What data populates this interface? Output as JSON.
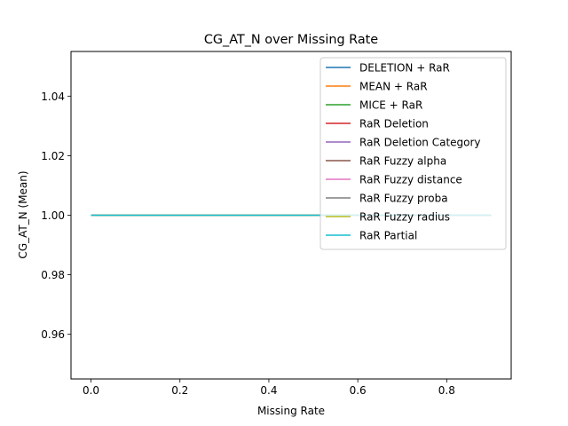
{
  "chart_data": {
    "type": "line",
    "title": "CG_AT_N over Missing Rate",
    "xlabel": "Missing Rate",
    "ylabel": "CG_AT_N (Mean)",
    "xlim": [
      -0.045,
      0.945
    ],
    "ylim": [
      0.945,
      1.055
    ],
    "xticks": [
      0.0,
      0.2,
      0.4,
      0.6,
      0.8
    ],
    "xtick_labels": [
      "0.0",
      "0.2",
      "0.4",
      "0.6",
      "0.8"
    ],
    "yticks": [
      0.96,
      0.98,
      1.0,
      1.02,
      1.04
    ],
    "ytick_labels": [
      "0.96",
      "0.98",
      "1.00",
      "1.02",
      "1.04"
    ],
    "grid": false,
    "legend_position": "top-right",
    "x": [
      0.0,
      0.1,
      0.2,
      0.3,
      0.4,
      0.5,
      0.6,
      0.7,
      0.8,
      0.9
    ],
    "series": [
      {
        "name": "DELETION + RaR",
        "color": "#1f77b4",
        "values": [
          1.0,
          1.0,
          1.0,
          1.0,
          1.0,
          1.0,
          1.0,
          1.0,
          1.0,
          1.0
        ]
      },
      {
        "name": "MEAN + RaR",
        "color": "#ff7f0e",
        "values": [
          1.0,
          1.0,
          1.0,
          1.0,
          1.0,
          1.0,
          1.0,
          1.0,
          1.0,
          1.0
        ]
      },
      {
        "name": "MICE + RaR",
        "color": "#2ca02c",
        "values": [
          1.0,
          1.0,
          1.0,
          1.0,
          1.0,
          1.0,
          1.0,
          1.0,
          1.0,
          1.0
        ]
      },
      {
        "name": "RaR Deletion",
        "color": "#d62728",
        "values": [
          1.0,
          1.0,
          1.0,
          1.0,
          1.0,
          1.0,
          1.0,
          1.0,
          1.0,
          1.0
        ]
      },
      {
        "name": "RaR Deletion Category",
        "color": "#9467bd",
        "values": [
          1.0,
          1.0,
          1.0,
          1.0,
          1.0,
          1.0,
          1.0,
          1.0,
          1.0,
          1.0
        ]
      },
      {
        "name": "RaR Fuzzy alpha",
        "color": "#8c564b",
        "values": [
          1.0,
          1.0,
          1.0,
          1.0,
          1.0,
          1.0,
          1.0,
          1.0,
          1.0,
          1.0
        ]
      },
      {
        "name": "RaR Fuzzy distance",
        "color": "#e377c2",
        "values": [
          1.0,
          1.0,
          1.0,
          1.0,
          1.0,
          1.0,
          1.0,
          1.0,
          1.0,
          1.0
        ]
      },
      {
        "name": "RaR Fuzzy proba",
        "color": "#7f7f7f",
        "values": [
          1.0,
          1.0,
          1.0,
          1.0,
          1.0,
          1.0,
          1.0,
          1.0,
          1.0,
          1.0
        ]
      },
      {
        "name": "RaR Fuzzy radius",
        "color": "#bcbd22",
        "values": [
          1.0,
          1.0,
          1.0,
          1.0,
          1.0,
          1.0,
          1.0,
          1.0,
          1.0,
          1.0
        ]
      },
      {
        "name": "RaR Partial",
        "color": "#17becf",
        "values": [
          1.0,
          1.0,
          1.0,
          1.0,
          1.0,
          1.0,
          1.0,
          1.0,
          1.0,
          1.0
        ]
      }
    ]
  }
}
